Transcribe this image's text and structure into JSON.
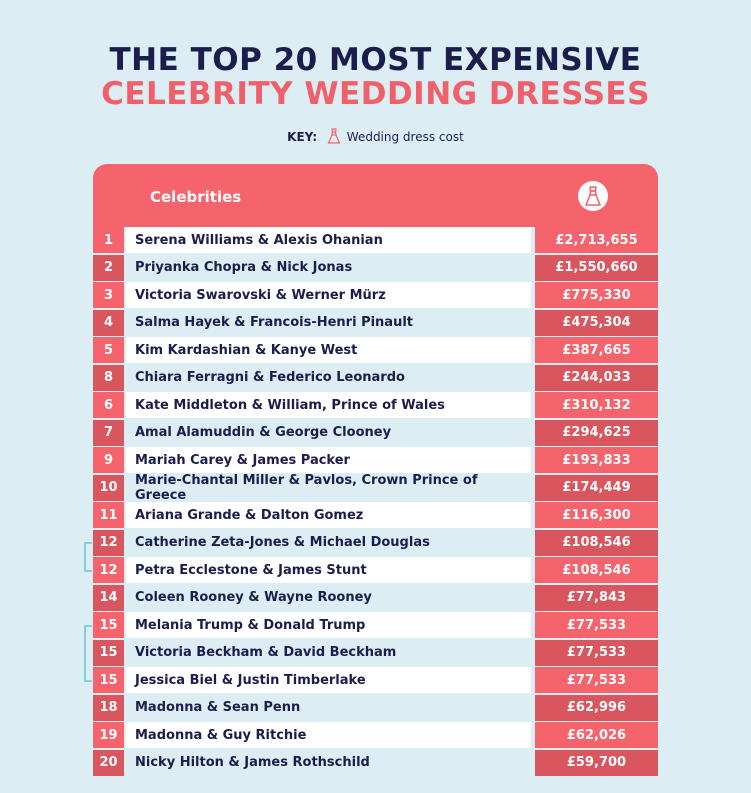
{
  "title": {
    "line1": "THE TOP 20 MOST EXPENSIVE",
    "line2": "CELEBRITY WEDDING DRESSES"
  },
  "key": {
    "label": "KEY:",
    "text": "Wedding dress cost",
    "icon": "wedding-dress-icon"
  },
  "colors": {
    "navy": "#1b1d4d",
    "coral": "#f5646d",
    "coral_dark": "#d9565f",
    "background": "#dceef3",
    "bracket": "#7fd0dc"
  },
  "chart_data": {
    "type": "table",
    "columns": [
      "Celebrities",
      "Wedding dress cost"
    ],
    "header_label": "Celebrities",
    "rows": [
      {
        "rank": "1",
        "celebrities": "Serena Williams & Alexis Ohanian",
        "cost": "£2,713,655"
      },
      {
        "rank": "2",
        "celebrities": "Priyanka Chopra & Nick Jonas",
        "cost": "£1,550,660"
      },
      {
        "rank": "3",
        "celebrities": "Victoria Swarovski & Werner Mürz",
        "cost": "£775,330"
      },
      {
        "rank": "4",
        "celebrities": "Salma Hayek & Francois-Henri Pinault",
        "cost": "£475,304"
      },
      {
        "rank": "5",
        "celebrities": "Kim Kardashian & Kanye West",
        "cost": "£387,665"
      },
      {
        "rank": "8",
        "celebrities": "Chiara Ferragni & Federico Leonardo",
        "cost": "£244,033"
      },
      {
        "rank": "6",
        "celebrities": "Kate Middleton & William, Prince of Wales",
        "cost": "£310,132"
      },
      {
        "rank": "7",
        "celebrities": "Amal Alamuddin & George Clooney",
        "cost": "£294,625"
      },
      {
        "rank": "9",
        "celebrities": "Mariah Carey & James Packer",
        "cost": "£193,833"
      },
      {
        "rank": "10",
        "celebrities": "Marie-Chantal Miller & Pavlos, Crown Prince of Greece",
        "cost": "£174,449"
      },
      {
        "rank": "11",
        "celebrities": "Ariana Grande & Dalton Gomez",
        "cost": "£116,300"
      },
      {
        "rank": "12",
        "celebrities": "Catherine Zeta-Jones & Michael Douglas",
        "cost": "£108,546"
      },
      {
        "rank": "12",
        "celebrities": "Petra Ecclestone & James Stunt",
        "cost": "£108,546"
      },
      {
        "rank": "14",
        "celebrities": "Coleen Rooney & Wayne Rooney",
        "cost": "£77,843"
      },
      {
        "rank": "15",
        "celebrities": "Melania Trump & Donald Trump",
        "cost": "£77,533"
      },
      {
        "rank": "15",
        "celebrities": "Victoria Beckham & David Beckham",
        "cost": "£77,533"
      },
      {
        "rank": "15",
        "celebrities": "Jessica Biel & Justin Timberlake",
        "cost": "£77,533"
      },
      {
        "rank": "18",
        "celebrities": "Madonna & Sean Penn",
        "cost": "£62,996"
      },
      {
        "rank": "19",
        "celebrities": "Madonna & Guy Ritchie",
        "cost": "£62,026"
      },
      {
        "rank": "20",
        "celebrities": "Nicky Hilton & James Rothschild",
        "cost": "£59,700"
      }
    ],
    "tie_groups": [
      [
        "12",
        "12"
      ],
      [
        "15",
        "15",
        "15"
      ]
    ]
  }
}
